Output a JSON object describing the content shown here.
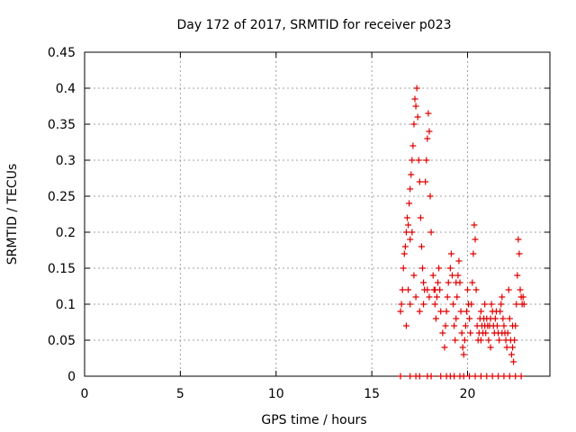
{
  "chart_data": {
    "type": "scatter",
    "title": "Day 172 of 2017, SRMTID for receiver p023",
    "xlabel": "GPS time / hours",
    "ylabel": "SRMTID / TECUs",
    "xlim": [
      0,
      24.3
    ],
    "ylim": [
      0,
      0.45
    ],
    "grid": true,
    "x_ticks": [
      0,
      5,
      10,
      15,
      20
    ],
    "x_tick_labels": [
      "0",
      "5",
      "10",
      "15",
      "20"
    ],
    "y_ticks": [
      0,
      0.05,
      0.1,
      0.15,
      0.2,
      0.25,
      0.3,
      0.35,
      0.4,
      0.45
    ],
    "y_tick_labels": [
      "0",
      "0.05",
      "0.1",
      "0.15",
      "0.2",
      "0.25",
      "0.3",
      "0.35",
      "0.4",
      "0.45"
    ],
    "colors": {
      "series": "#e00000",
      "grid": "#a0a0a0",
      "axis": "#000000"
    },
    "series": [
      {
        "name": "SRMTID",
        "marker": "plus",
        "points": [
          [
            16.5,
            0.09
          ],
          [
            16.55,
            0.1
          ],
          [
            16.6,
            0.12
          ],
          [
            16.65,
            0.15
          ],
          [
            16.7,
            0.17
          ],
          [
            16.75,
            0.18
          ],
          [
            16.8,
            0.2
          ],
          [
            16.8,
            0.07
          ],
          [
            16.85,
            0.22
          ],
          [
            16.9,
            0.21
          ],
          [
            16.95,
            0.24
          ],
          [
            17.0,
            0.26
          ],
          [
            17.0,
            0.19
          ],
          [
            17.05,
            0.28
          ],
          [
            17.1,
            0.3
          ],
          [
            17.1,
            0.2
          ],
          [
            17.15,
            0.32
          ],
          [
            17.2,
            0.35
          ],
          [
            17.2,
            0.14
          ],
          [
            17.25,
            0.385
          ],
          [
            17.3,
            0.375
          ],
          [
            17.35,
            0.4
          ],
          [
            17.4,
            0.36
          ],
          [
            17.45,
            0.3
          ],
          [
            17.5,
            0.27
          ],
          [
            17.55,
            0.22
          ],
          [
            17.6,
            0.18
          ],
          [
            17.65,
            0.15
          ],
          [
            17.7,
            0.13
          ],
          [
            17.75,
            0.12
          ],
          [
            17.8,
            0.27
          ],
          [
            17.85,
            0.3
          ],
          [
            17.9,
            0.33
          ],
          [
            17.95,
            0.365
          ],
          [
            18.0,
            0.34
          ],
          [
            18.05,
            0.25
          ],
          [
            18.1,
            0.2
          ],
          [
            16.9,
            0.12
          ],
          [
            17.0,
            0.1
          ],
          [
            17.3,
            0.11
          ],
          [
            17.5,
            0.09
          ],
          [
            17.7,
            0.1
          ],
          [
            18.2,
            0.14
          ],
          [
            18.25,
            0.12
          ],
          [
            18.3,
            0.1
          ],
          [
            18.35,
            0.08
          ],
          [
            18.4,
            0.11
          ],
          [
            18.45,
            0.13
          ],
          [
            18.5,
            0.15
          ],
          [
            18.55,
            0.12
          ],
          [
            18.6,
            0.09
          ],
          [
            18.7,
            0.06
          ],
          [
            18.8,
            0.04
          ],
          [
            18.85,
            0.07
          ],
          [
            18.9,
            0.09
          ],
          [
            18.95,
            0.11
          ],
          [
            19.0,
            0.13
          ],
          [
            19.1,
            0.15
          ],
          [
            19.15,
            0.17
          ],
          [
            19.2,
            0.14
          ],
          [
            19.25,
            0.1
          ],
          [
            19.3,
            0.07
          ],
          [
            19.35,
            0.05
          ],
          [
            19.4,
            0.08
          ],
          [
            19.45,
            0.11
          ],
          [
            19.5,
            0.14
          ],
          [
            19.55,
            0.16
          ],
          [
            19.6,
            0.13
          ],
          [
            19.65,
            0.09
          ],
          [
            19.7,
            0.06
          ],
          [
            19.75,
            0.04
          ],
          [
            19.8,
            0.03
          ],
          [
            19.85,
            0.05
          ],
          [
            19.9,
            0.07
          ],
          [
            19.95,
            0.09
          ],
          [
            20.0,
            0.12
          ],
          [
            20.05,
            0.1
          ],
          [
            20.1,
            0.08
          ],
          [
            20.15,
            0.06
          ],
          [
            20.2,
            0.1
          ],
          [
            20.25,
            0.13
          ],
          [
            20.3,
            0.17
          ],
          [
            20.35,
            0.21
          ],
          [
            20.4,
            0.19
          ],
          [
            20.45,
            0.12
          ],
          [
            20.5,
            0.07
          ],
          [
            20.55,
            0.05
          ],
          [
            20.6,
            0.06
          ],
          [
            20.65,
            0.08
          ],
          [
            20.7,
            0.09
          ],
          [
            20.75,
            0.07
          ],
          [
            20.8,
            0.06
          ],
          [
            20.85,
            0.08
          ],
          [
            20.9,
            0.07
          ],
          [
            20.95,
            0.06
          ],
          [
            21.0,
            0.08
          ],
          [
            21.05,
            0.07
          ],
          [
            21.1,
            0.05
          ],
          [
            21.15,
            0.07
          ],
          [
            21.2,
            0.08
          ],
          [
            21.25,
            0.1
          ],
          [
            21.3,
            0.09
          ],
          [
            21.35,
            0.07
          ],
          [
            21.4,
            0.06
          ],
          [
            21.45,
            0.08
          ],
          [
            21.5,
            0.09
          ],
          [
            21.55,
            0.07
          ],
          [
            21.6,
            0.06
          ],
          [
            21.65,
            0.05
          ],
          [
            21.7,
            0.09
          ],
          [
            21.75,
            0.1
          ],
          [
            21.8,
            0.11
          ],
          [
            21.85,
            0.08
          ],
          [
            21.9,
            0.07
          ],
          [
            21.95,
            0.06
          ],
          [
            22.0,
            0.05
          ],
          [
            22.05,
            0.04
          ],
          [
            22.1,
            0.06
          ],
          [
            22.15,
            0.12
          ],
          [
            22.2,
            0.08
          ],
          [
            22.25,
            0.05
          ],
          [
            22.3,
            0.03
          ],
          [
            22.35,
            0.04
          ],
          [
            22.4,
            0.02
          ],
          [
            22.45,
            0.05
          ],
          [
            22.5,
            0.07
          ],
          [
            22.55,
            0.1
          ],
          [
            22.6,
            0.14
          ],
          [
            22.65,
            0.19
          ],
          [
            22.7,
            0.17
          ],
          [
            22.75,
            0.12
          ],
          [
            22.8,
            0.11
          ],
          [
            22.85,
            0.1
          ],
          [
            22.9,
            0.11
          ],
          [
            22.95,
            0.1
          ],
          [
            22.35,
            0.07
          ],
          [
            21.2,
            0.04
          ],
          [
            20.7,
            0.05
          ],
          [
            18.3,
            0.12
          ],
          [
            19.4,
            0.13
          ],
          [
            18.0,
            0.11
          ],
          [
            17.9,
            0.12
          ],
          [
            20.9,
            0.1
          ],
          [
            21.8,
            0.06
          ],
          [
            16.5,
            0.0
          ],
          [
            17.0,
            0.0
          ],
          [
            17.3,
            0.0
          ],
          [
            17.5,
            0.0
          ],
          [
            17.9,
            0.0
          ],
          [
            18.1,
            0.0
          ],
          [
            18.6,
            0.0
          ],
          [
            18.9,
            0.0
          ],
          [
            19.1,
            0.0
          ],
          [
            19.3,
            0.0
          ],
          [
            19.6,
            0.0
          ],
          [
            19.8,
            0.0
          ],
          [
            20.1,
            0.0
          ],
          [
            20.4,
            0.0
          ],
          [
            20.7,
            0.0
          ],
          [
            21.0,
            0.0
          ],
          [
            21.3,
            0.0
          ],
          [
            21.6,
            0.0
          ],
          [
            21.9,
            0.0
          ],
          [
            22.2,
            0.0
          ],
          [
            22.5,
            0.0
          ],
          [
            22.8,
            0.0
          ]
        ]
      }
    ]
  }
}
